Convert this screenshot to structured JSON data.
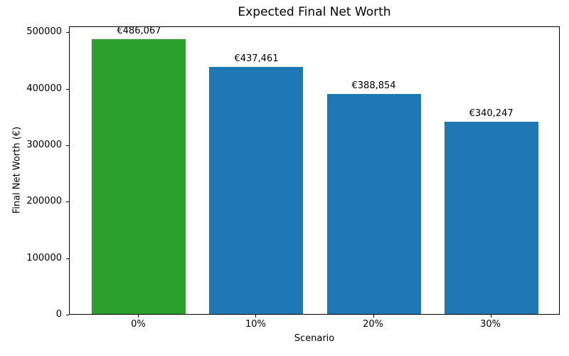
{
  "chart_data": {
    "type": "bar",
    "title": "Expected Final Net Worth",
    "xlabel": "Scenario",
    "ylabel": "Final Net Worth (€)",
    "categories": [
      "0%",
      "10%",
      "20%",
      "30%"
    ],
    "values": [
      486067,
      437461,
      388854,
      340247
    ],
    "bar_labels": [
      "€486,067",
      "€437,461",
      "€388,854",
      "€340,247"
    ],
    "bar_colors": [
      "#2ca02c",
      "#1f77b4",
      "#1f77b4",
      "#1f77b4"
    ],
    "yticks": [
      0,
      100000,
      200000,
      300000,
      400000,
      500000
    ],
    "ylim": [
      0,
      510370
    ],
    "grid": false,
    "legend_position": "none",
    "bar_width_fraction": 0.8
  }
}
